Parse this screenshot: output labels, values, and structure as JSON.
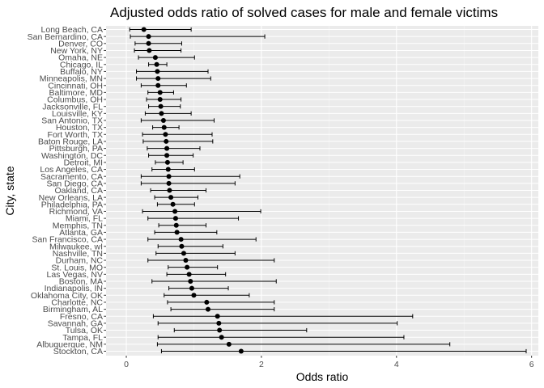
{
  "chart_data": {
    "type": "scatter",
    "title": "Adjusted odds ratio of solved cases for male and female victims",
    "xlabel": "Odds ratio",
    "ylabel": "City, state",
    "xlim": [
      -0.3,
      6.1
    ],
    "xticks": [
      0,
      2,
      4,
      6
    ],
    "grid": true,
    "errorbars": true,
    "cities": [
      "Long Beach, CA",
      "San Bernardino, CA",
      "Denver, CO",
      "New York, NY",
      "Omaha, NE",
      "Chicago, IL",
      "Buffalo, NY",
      "Minneapolis, MN",
      "Cincinnati, OH",
      "Baltimore, MD",
      "Columbus, OH",
      "Jacksonville, FL",
      "Louisville, KY",
      "San Antonio, TX",
      "Houston, TX",
      "Fort Worth, TX",
      "Baton Rouge, LA",
      "Pittsburgh, PA",
      "Washington, DC",
      "Detroit, MI",
      "Los Angeles, CA",
      "Sacramento, CA",
      "San Diego, CA",
      "Oakland, CA",
      "New Orleans, LA",
      "Philadelphia, PA",
      "Richmond, VA",
      "Miami, FL",
      "Memphis, TN",
      "Atlanta, GA",
      "San Francisco, CA",
      "Milwaukee, wI",
      "Nashville, TN",
      "Durham, NC",
      "St. Louis, MO",
      "Las Vegas, NV",
      "Boston, MA",
      "Indianapolis, IN",
      "Oklahoma City, OK",
      "Charlotte, NC",
      "Birmingham, AL",
      "Fresno, CA",
      "Savannah, GA",
      "Tulsa, OK",
      "Tampa, FL",
      "Albuquerque, NM",
      "Stockton, CA"
    ],
    "odds_ratio": [
      0.26,
      0.33,
      0.33,
      0.34,
      0.43,
      0.45,
      0.46,
      0.47,
      0.47,
      0.5,
      0.5,
      0.51,
      0.52,
      0.55,
      0.56,
      0.58,
      0.59,
      0.6,
      0.6,
      0.61,
      0.62,
      0.63,
      0.63,
      0.64,
      0.66,
      0.69,
      0.72,
      0.73,
      0.74,
      0.75,
      0.81,
      0.82,
      0.85,
      0.88,
      0.9,
      0.93,
      0.95,
      0.97,
      1.0,
      1.19,
      1.21,
      1.35,
      1.37,
      1.38,
      1.41,
      1.52,
      1.7
    ],
    "ci_low": [
      0.05,
      0.06,
      0.13,
      0.12,
      0.18,
      0.33,
      0.15,
      0.15,
      0.22,
      0.32,
      0.3,
      0.33,
      0.28,
      0.22,
      0.39,
      0.24,
      0.25,
      0.31,
      0.33,
      0.43,
      0.38,
      0.22,
      0.22,
      0.36,
      0.42,
      0.46,
      0.24,
      0.32,
      0.48,
      0.42,
      0.32,
      0.47,
      0.44,
      0.32,
      0.62,
      0.6,
      0.38,
      0.63,
      0.56,
      0.61,
      0.66,
      0.4,
      0.47,
      0.71,
      0.47,
      0.46,
      0.52
    ],
    "ci_high": [
      0.96,
      2.05,
      0.82,
      0.81,
      1.01,
      0.6,
      1.21,
      1.25,
      0.89,
      0.7,
      0.81,
      0.8,
      0.96,
      1.3,
      0.78,
      1.27,
      1.28,
      1.09,
      0.99,
      0.84,
      1.01,
      1.68,
      1.61,
      1.18,
      1.06,
      1.01,
      1.99,
      1.66,
      1.18,
      1.34,
      1.92,
      1.43,
      1.61,
      2.19,
      1.35,
      1.47,
      2.22,
      1.51,
      1.82,
      2.19,
      2.19,
      4.24,
      4.01,
      2.67,
      4.11,
      4.79,
      5.92
    ]
  }
}
